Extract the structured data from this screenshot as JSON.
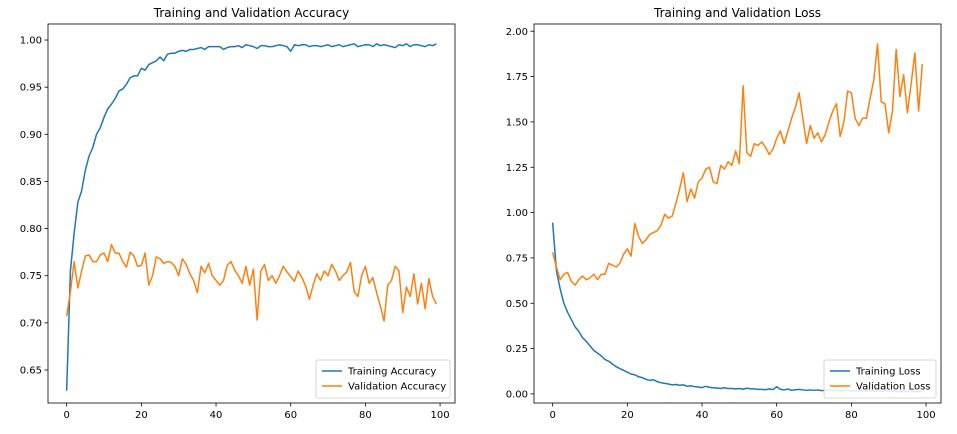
{
  "chart_data": [
    {
      "type": "line",
      "title": "Training and Validation Accuracy",
      "xlabel": "",
      "ylabel": "",
      "xlim": [
        -5,
        104
      ],
      "ylim": [
        0.615,
        1.017
      ],
      "xticks": [
        "0",
        "20",
        "40",
        "60",
        "80",
        "100"
      ],
      "yticks": [
        "0.65",
        "0.70",
        "0.75",
        "0.80",
        "0.85",
        "0.90",
        "0.95",
        "1.00"
      ],
      "grid": false,
      "legend_position": "lower right",
      "series": [
        {
          "name": "Training Accuracy",
          "color": "#1f77b4",
          "x": [
            0,
            1,
            2,
            3,
            4,
            5,
            6,
            7,
            8,
            9,
            10,
            11,
            12,
            13,
            14,
            15,
            16,
            17,
            18,
            19,
            20,
            21,
            22,
            23,
            24,
            25,
            26,
            27,
            28,
            29,
            30,
            31,
            32,
            33,
            34,
            35,
            36,
            37,
            38,
            39,
            40,
            41,
            42,
            43,
            44,
            45,
            46,
            47,
            48,
            49,
            50,
            51,
            52,
            53,
            54,
            55,
            56,
            57,
            58,
            59,
            60,
            61,
            62,
            63,
            64,
            65,
            66,
            67,
            68,
            69,
            70,
            71,
            72,
            73,
            74,
            75,
            76,
            77,
            78,
            79,
            80,
            81,
            82,
            83,
            84,
            85,
            86,
            87,
            88,
            89,
            90,
            91,
            92,
            93,
            94,
            95,
            96,
            97,
            98,
            99
          ],
          "y": [
            0.628,
            0.755,
            0.795,
            0.828,
            0.84,
            0.862,
            0.877,
            0.886,
            0.9,
            0.907,
            0.918,
            0.927,
            0.932,
            0.938,
            0.946,
            0.948,
            0.953,
            0.96,
            0.962,
            0.962,
            0.97,
            0.968,
            0.974,
            0.976,
            0.978,
            0.982,
            0.978,
            0.985,
            0.986,
            0.986,
            0.988,
            0.989,
            0.988,
            0.99,
            0.99,
            0.991,
            0.992,
            0.99,
            0.993,
            0.993,
            0.993,
            0.993,
            0.99,
            0.992,
            0.993,
            0.993,
            0.994,
            0.992,
            0.995,
            0.994,
            0.993,
            0.991,
            0.994,
            0.994,
            0.993,
            0.993,
            0.994,
            0.995,
            0.994,
            0.993,
            0.988,
            0.995,
            0.994,
            0.995,
            0.995,
            0.993,
            0.994,
            0.994,
            0.993,
            0.994,
            0.995,
            0.993,
            0.994,
            0.995,
            0.993,
            0.994,
            0.995,
            0.996,
            0.993,
            0.994,
            0.995,
            0.995,
            0.993,
            0.996,
            0.994,
            0.995,
            0.994,
            0.993,
            0.992,
            0.995,
            0.994,
            0.996,
            0.993,
            0.995,
            0.995,
            0.994,
            0.993,
            0.995,
            0.994,
            0.996
          ]
        },
        {
          "name": "Validation Accuracy",
          "color": "#ff7f0e",
          "x": [
            0,
            1,
            2,
            3,
            4,
            5,
            6,
            7,
            8,
            9,
            10,
            11,
            12,
            13,
            14,
            15,
            16,
            17,
            18,
            19,
            20,
            21,
            22,
            23,
            24,
            25,
            26,
            27,
            28,
            29,
            30,
            31,
            32,
            33,
            34,
            35,
            36,
            37,
            38,
            39,
            40,
            41,
            42,
            43,
            44,
            45,
            46,
            47,
            48,
            49,
            50,
            51,
            52,
            53,
            54,
            55,
            56,
            57,
            58,
            59,
            60,
            61,
            62,
            63,
            64,
            65,
            66,
            67,
            68,
            69,
            70,
            71,
            72,
            73,
            74,
            75,
            76,
            77,
            78,
            79,
            80,
            81,
            82,
            83,
            84,
            85,
            86,
            87,
            88,
            89,
            90,
            91,
            92,
            93,
            94,
            95,
            96,
            97,
            98,
            99
          ],
          "y": [
            0.707,
            0.733,
            0.765,
            0.737,
            0.755,
            0.771,
            0.772,
            0.765,
            0.765,
            0.772,
            0.774,
            0.765,
            0.783,
            0.774,
            0.774,
            0.765,
            0.759,
            0.775,
            0.771,
            0.76,
            0.761,
            0.774,
            0.74,
            0.75,
            0.77,
            0.768,
            0.763,
            0.765,
            0.764,
            0.76,
            0.75,
            0.768,
            0.762,
            0.752,
            0.745,
            0.732,
            0.76,
            0.753,
            0.763,
            0.75,
            0.745,
            0.74,
            0.745,
            0.761,
            0.765,
            0.756,
            0.75,
            0.742,
            0.76,
            0.74,
            0.757,
            0.703,
            0.755,
            0.762,
            0.745,
            0.75,
            0.742,
            0.75,
            0.76,
            0.754,
            0.749,
            0.744,
            0.755,
            0.748,
            0.739,
            0.725,
            0.74,
            0.752,
            0.745,
            0.755,
            0.75,
            0.762,
            0.755,
            0.745,
            0.75,
            0.754,
            0.764,
            0.733,
            0.728,
            0.75,
            0.76,
            0.742,
            0.748,
            0.732,
            0.718,
            0.702,
            0.74,
            0.745,
            0.76,
            0.755,
            0.711,
            0.738,
            0.728,
            0.752,
            0.72,
            0.742,
            0.715,
            0.747,
            0.728,
            0.72
          ]
        }
      ]
    },
    {
      "type": "line",
      "title": "Training and Validation Loss",
      "xlabel": "",
      "ylabel": "",
      "xlim": [
        -5,
        104
      ],
      "ylim": [
        -0.05,
        2.04
      ],
      "xticks": [
        "0",
        "20",
        "40",
        "60",
        "80",
        "100"
      ],
      "yticks": [
        "0.00",
        "0.25",
        "0.50",
        "0.75",
        "1.00",
        "1.25",
        "1.50",
        "1.75",
        "2.00"
      ],
      "grid": false,
      "legend_position": "lower right",
      "series": [
        {
          "name": "Training Loss",
          "color": "#1f77b4",
          "x": [
            0,
            1,
            2,
            3,
            4,
            5,
            6,
            7,
            8,
            9,
            10,
            11,
            12,
            13,
            14,
            15,
            16,
            17,
            18,
            19,
            20,
            21,
            22,
            23,
            24,
            25,
            26,
            27,
            28,
            29,
            30,
            31,
            32,
            33,
            34,
            35,
            36,
            37,
            38,
            39,
            40,
            41,
            42,
            43,
            44,
            45,
            46,
            47,
            48,
            49,
            50,
            51,
            52,
            53,
            54,
            55,
            56,
            57,
            58,
            59,
            60,
            61,
            62,
            63,
            64,
            65,
            66,
            67,
            68,
            69,
            70,
            71,
            72,
            73,
            74,
            75,
            76,
            77,
            78,
            79,
            80,
            81,
            82,
            83,
            84,
            85,
            86,
            87,
            88,
            89,
            90,
            91,
            92,
            93,
            94,
            95,
            96,
            97,
            98,
            99
          ],
          "y": [
            0.945,
            0.68,
            0.58,
            0.5,
            0.45,
            0.41,
            0.37,
            0.345,
            0.31,
            0.29,
            0.265,
            0.24,
            0.225,
            0.21,
            0.19,
            0.18,
            0.165,
            0.15,
            0.14,
            0.13,
            0.12,
            0.11,
            0.105,
            0.095,
            0.09,
            0.08,
            0.075,
            0.078,
            0.068,
            0.062,
            0.058,
            0.055,
            0.05,
            0.052,
            0.048,
            0.05,
            0.042,
            0.045,
            0.04,
            0.038,
            0.035,
            0.042,
            0.036,
            0.034,
            0.033,
            0.03,
            0.034,
            0.03,
            0.03,
            0.028,
            0.03,
            0.026,
            0.032,
            0.028,
            0.028,
            0.025,
            0.025,
            0.023,
            0.028,
            0.024,
            0.04,
            0.025,
            0.022,
            0.027,
            0.02,
            0.023,
            0.025,
            0.022,
            0.02,
            0.022,
            0.02,
            0.022,
            0.018,
            0.02,
            0.022,
            0.018,
            0.02,
            0.016,
            0.019,
            0.02,
            0.016,
            0.018,
            0.015,
            0.018,
            0.016,
            0.018,
            0.015,
            0.016,
            0.014,
            0.016,
            0.015,
            0.016,
            0.013,
            0.015,
            0.014,
            0.015,
            0.013,
            0.014,
            0.013,
            0.014
          ]
        },
        {
          "name": "Validation Loss",
          "color": "#ff7f0e",
          "x": [
            0,
            1,
            2,
            3,
            4,
            5,
            6,
            7,
            8,
            9,
            10,
            11,
            12,
            13,
            14,
            15,
            16,
            17,
            18,
            19,
            20,
            21,
            22,
            23,
            24,
            25,
            26,
            27,
            28,
            29,
            30,
            31,
            32,
            33,
            34,
            35,
            36,
            37,
            38,
            39,
            40,
            41,
            42,
            43,
            44,
            45,
            46,
            47,
            48,
            49,
            50,
            51,
            52,
            53,
            54,
            55,
            56,
            57,
            58,
            59,
            60,
            61,
            62,
            63,
            64,
            65,
            66,
            67,
            68,
            69,
            70,
            71,
            72,
            73,
            74,
            75,
            76,
            77,
            78,
            79,
            80,
            81,
            82,
            83,
            84,
            85,
            86,
            87,
            88,
            89,
            90,
            91,
            92,
            93,
            94,
            95,
            96,
            97,
            98,
            99
          ],
          "y": [
            0.78,
            0.7,
            0.63,
            0.66,
            0.67,
            0.62,
            0.6,
            0.63,
            0.65,
            0.63,
            0.64,
            0.66,
            0.63,
            0.66,
            0.66,
            0.72,
            0.71,
            0.7,
            0.72,
            0.77,
            0.8,
            0.76,
            0.94,
            0.87,
            0.83,
            0.85,
            0.88,
            0.89,
            0.9,
            0.93,
            0.99,
            0.97,
            0.98,
            1.05,
            1.13,
            1.22,
            1.06,
            1.13,
            1.08,
            1.17,
            1.19,
            1.24,
            1.25,
            1.17,
            1.16,
            1.26,
            1.24,
            1.28,
            1.26,
            1.34,
            1.27,
            1.7,
            1.33,
            1.31,
            1.38,
            1.37,
            1.39,
            1.36,
            1.32,
            1.35,
            1.41,
            1.45,
            1.38,
            1.45,
            1.52,
            1.58,
            1.66,
            1.52,
            1.38,
            1.48,
            1.41,
            1.44,
            1.39,
            1.43,
            1.5,
            1.56,
            1.6,
            1.42,
            1.5,
            1.67,
            1.66,
            1.52,
            1.48,
            1.52,
            1.52,
            1.63,
            1.73,
            1.93,
            1.61,
            1.6,
            1.44,
            1.56,
            1.9,
            1.64,
            1.76,
            1.55,
            1.71,
            1.88,
            1.56,
            1.82
          ]
        }
      ]
    }
  ]
}
